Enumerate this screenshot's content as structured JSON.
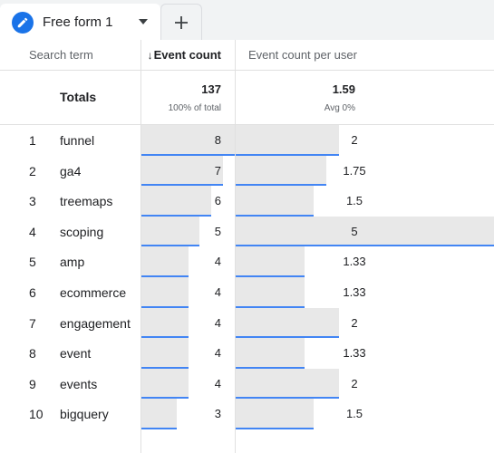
{
  "tab": {
    "title": "Free form 1",
    "add_label": "+"
  },
  "headers": {
    "search_term": "Search term",
    "event_count": "Event count",
    "event_count_per_user": "Event count per user",
    "sort_arrow": "↓"
  },
  "totals": {
    "label": "Totals",
    "event_count": "137",
    "event_count_sub": "100% of total",
    "per_user": "1.59",
    "per_user_sub": "Avg 0%"
  },
  "rows": [
    {
      "num": "1",
      "term": "funnel",
      "event_count": 8,
      "per_user": 2,
      "event_count_text": "8",
      "per_user_text": "2"
    },
    {
      "num": "2",
      "term": "ga4",
      "event_count": 7,
      "per_user": 1.75,
      "event_count_text": "7",
      "per_user_text": "1.75"
    },
    {
      "num": "3",
      "term": "treemaps",
      "event_count": 6,
      "per_user": 1.5,
      "event_count_text": "6",
      "per_user_text": "1.5"
    },
    {
      "num": "4",
      "term": "scoping",
      "event_count": 5,
      "per_user": 5,
      "event_count_text": "5",
      "per_user_text": "5"
    },
    {
      "num": "5",
      "term": "amp",
      "event_count": 4,
      "per_user": 1.33,
      "event_count_text": "4",
      "per_user_text": "1.33"
    },
    {
      "num": "6",
      "term": "ecommerce",
      "event_count": 4,
      "per_user": 1.33,
      "event_count_text": "4",
      "per_user_text": "1.33"
    },
    {
      "num": "7",
      "term": "engagement",
      "event_count": 4,
      "per_user": 2,
      "event_count_text": "4",
      "per_user_text": "2"
    },
    {
      "num": "8",
      "term": "event",
      "event_count": 4,
      "per_user": 1.33,
      "event_count_text": "4",
      "per_user_text": "1.33"
    },
    {
      "num": "9",
      "term": "events",
      "event_count": 4,
      "per_user": 2,
      "event_count_text": "4",
      "per_user_text": "2"
    },
    {
      "num": "10",
      "term": "bigquery",
      "event_count": 3,
      "per_user": 1.5,
      "event_count_text": "3",
      "per_user_text": "1.5"
    }
  ],
  "colors": {
    "bar_fill": "#e8e8e8",
    "bar_accent": "#4285f4",
    "tab_icon": "#1a73e8"
  },
  "icons": {
    "tab": "pencil-icon",
    "tab_menu": "caret-down-icon",
    "add": "plus-icon"
  }
}
